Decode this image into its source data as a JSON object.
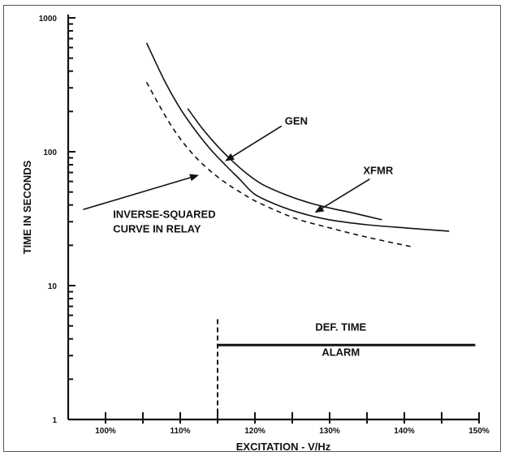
{
  "chart_data": {
    "type": "line",
    "title": "",
    "xlabel": "EXCITATION - V/Hz",
    "ylabel": "TIME IN SECONDS",
    "x_scale": "linear",
    "y_scale": "log",
    "xlim": [
      95,
      150
    ],
    "ylim": [
      1,
      1000
    ],
    "x_ticks": [
      {
        "value": 100,
        "label": "100%"
      },
      {
        "value": 110,
        "label": "110%"
      },
      {
        "value": 120,
        "label": "120%"
      },
      {
        "value": 130,
        "label": "130%"
      },
      {
        "value": 140,
        "label": "140%"
      },
      {
        "value": 150,
        "label": "150%"
      }
    ],
    "x_minor_ticks": [
      105,
      115,
      125,
      135,
      145
    ],
    "y_ticks": [
      {
        "value": 1,
        "label": "1"
      },
      {
        "value": 10,
        "label": "10"
      },
      {
        "value": 100,
        "label": "100"
      },
      {
        "value": 1000,
        "label": "1000"
      }
    ],
    "grid": false,
    "series": [
      {
        "name": "GEN",
        "style": "solid",
        "x": [
          105.5,
          108,
          110,
          112,
          114,
          116,
          118,
          120,
          123,
          126,
          130,
          135,
          140,
          146
        ],
        "y": [
          650,
          330,
          210,
          145,
          105,
          80,
          62,
          48,
          40,
          35,
          31,
          28.5,
          27,
          25.5
        ]
      },
      {
        "name": "XFMR",
        "style": "solid",
        "x": [
          111,
          113,
          115,
          117,
          119,
          121,
          124,
          127,
          130,
          133,
          137
        ],
        "y": [
          210,
          148,
          110,
          85,
          68,
          57,
          48,
          42,
          38,
          35,
          31
        ]
      },
      {
        "name": "INVERSE-SQUARED CURVE IN RELAY",
        "style": "dashed",
        "x": [
          105.5,
          108,
          110,
          112,
          114,
          116,
          118,
          120,
          123,
          126,
          130,
          135,
          141
        ],
        "y": [
          330,
          185,
          125,
          92,
          72,
          59,
          50,
          43,
          36,
          31,
          27,
          23,
          19.5
        ]
      },
      {
        "name": "DEF. TIME ALARM",
        "style": "solid",
        "x": [
          115,
          149.5
        ],
        "y": [
          3.6,
          3.6
        ]
      }
    ],
    "vertical_marker": {
      "x": 115,
      "y_range": [
        1,
        5.6
      ],
      "style": "dashed"
    },
    "annotations": [
      {
        "text": "GEN",
        "x": 124,
        "y": 160,
        "arrow_to": [
          116,
          85
        ]
      },
      {
        "text": "XFMR",
        "x": 134.5,
        "y": 68,
        "arrow_to": [
          128,
          35
        ]
      },
      {
        "text": "INVERSE-SQUARED",
        "x": 101,
        "y": 32
      },
      {
        "text": "CURVE IN RELAY",
        "x": 101,
        "y": 25,
        "arrow_to": [
          112.5,
          67
        ],
        "arrow_from": [
          97,
          37
        ]
      },
      {
        "text": "DEF. TIME",
        "x": 131.5,
        "y": 4.6
      },
      {
        "text": "ALARM",
        "x": 131.5,
        "y": 3.0
      }
    ]
  }
}
